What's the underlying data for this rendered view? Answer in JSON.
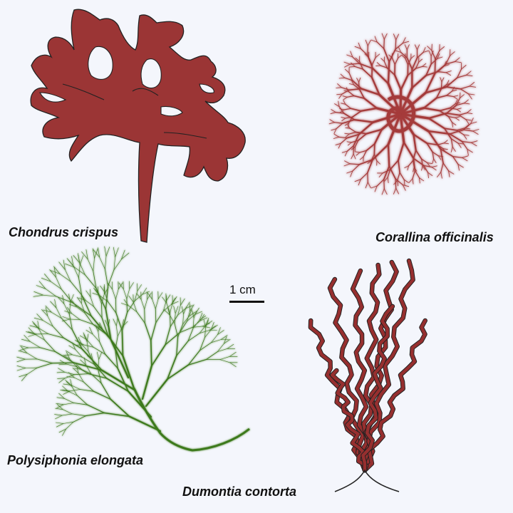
{
  "specimens": [
    {
      "name": "Chondrus crispus",
      "color": "#9b3535"
    },
    {
      "name": "Corallina officinalis",
      "color": "#a53a3a"
    },
    {
      "name": "Polysiphonia elongata",
      "color": "#3e7a1e"
    },
    {
      "name": "Dumontia contorta",
      "color": "#962f2f"
    }
  ],
  "scale": {
    "label": "1 cm"
  }
}
